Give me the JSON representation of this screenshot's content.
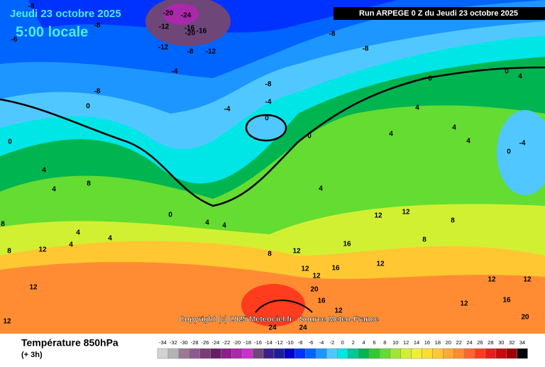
{
  "header": {
    "date": "Jeudi 23 octobre 2025",
    "time": "5:00 locale",
    "run": "Run ARPEGE 0 Z du Jeudi 23 octobre 2025"
  },
  "copyright": "Copyright (c) 2025 Meteociel.fr - Source Meteo-France",
  "footer": {
    "title": "Température 850hPa",
    "lead": "(+ 3h)"
  },
  "legend": {
    "values": [
      -34,
      -32,
      -30,
      -28,
      -26,
      -24,
      -22,
      -20,
      -18,
      -16,
      -14,
      -12,
      -10,
      -8,
      -6,
      -4,
      -2,
      0,
      2,
      4,
      6,
      8,
      10,
      12,
      14,
      16,
      18,
      20,
      22,
      24,
      26,
      28,
      30,
      32,
      34
    ],
    "colors": [
      "#d2d2d2",
      "#b4b4b4",
      "#9b7896",
      "#8c5a8c",
      "#783c78",
      "#641e64",
      "#8c1e8c",
      "#aa28aa",
      "#c832c8",
      "#6e4678",
      "#3c1e8c",
      "#1e1e96",
      "#0000c8",
      "#0032ff",
      "#0064ff",
      "#1e96ff",
      "#50c8ff",
      "#00e6e6",
      "#00c896",
      "#00b450",
      "#32c832",
      "#64dc32",
      "#a0e632",
      "#d2f032",
      "#f0f032",
      "#ffdc32",
      "#ffc832",
      "#ffaa32",
      "#ff8c32",
      "#ff6432",
      "#ff3c1e",
      "#e61e1e",
      "#c80a0a",
      "#a00000",
      "#000000"
    ]
  },
  "map": {
    "labels": [
      -8,
      -20,
      -24,
      -12,
      -16,
      -20,
      -16,
      -8,
      -6,
      -8,
      -8,
      -12,
      -12,
      -8,
      -8,
      -8,
      -4,
      -4,
      -4,
      0,
      0,
      0,
      0,
      0,
      4,
      0,
      4,
      8,
      4,
      4,
      4,
      4,
      4,
      4,
      0,
      -4,
      0,
      4,
      4,
      4,
      4,
      4,
      8,
      12,
      8,
      12,
      12,
      8,
      12,
      12,
      12,
      8,
      12,
      12,
      16,
      20,
      16,
      12,
      24,
      24,
      16,
      12,
      12,
      16,
      20,
      12,
      12,
      8
    ]
  }
}
